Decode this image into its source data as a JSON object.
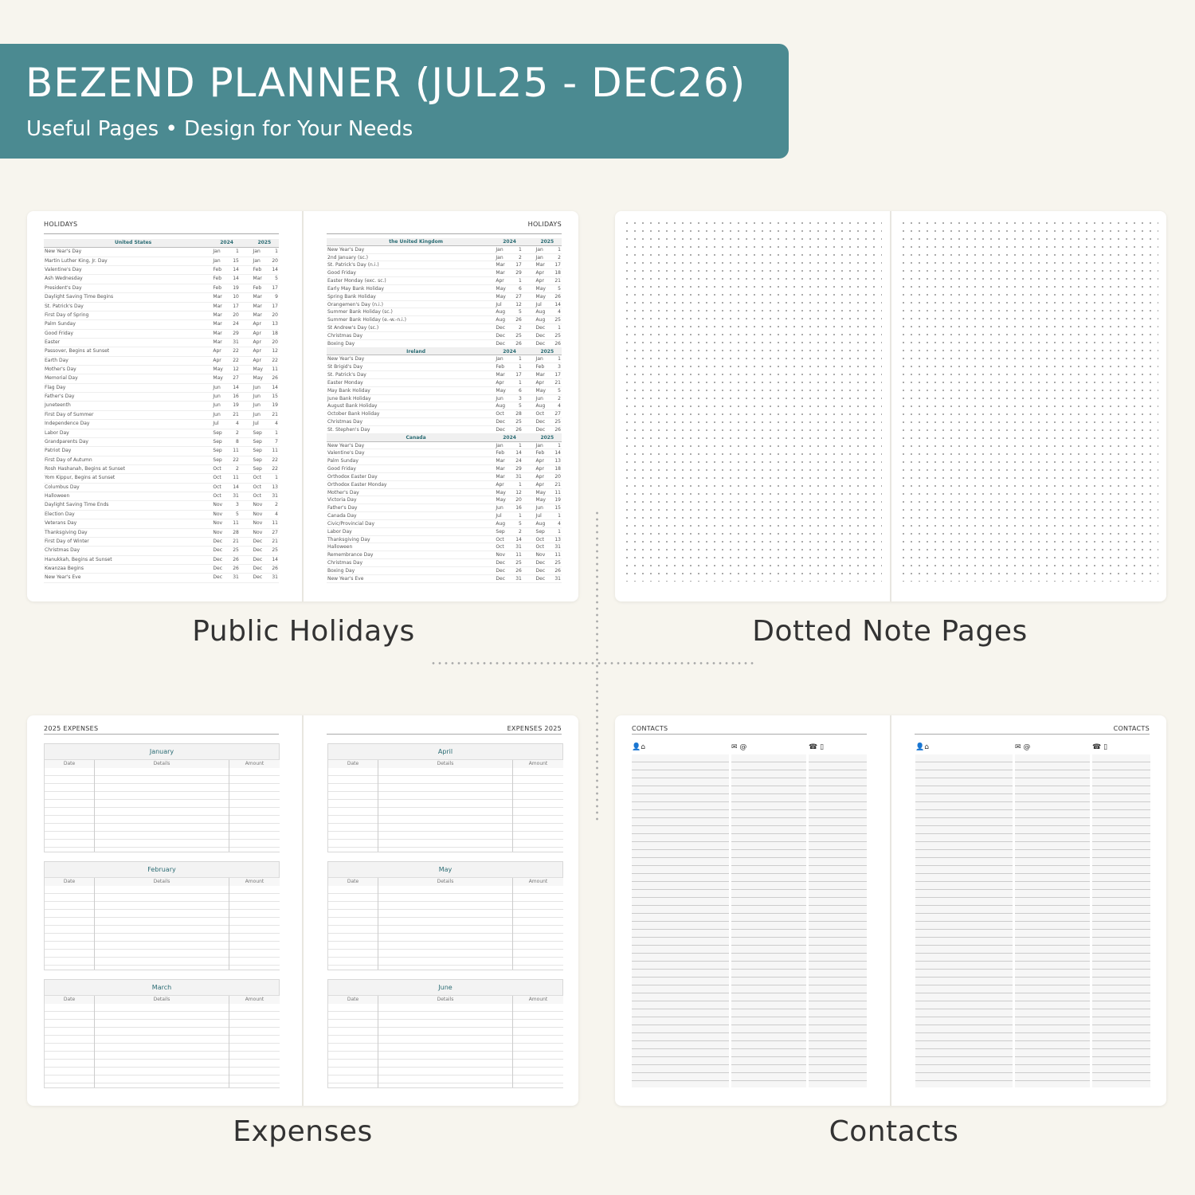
{
  "banner": {
    "title": "BEZEND PLANNER (JUL25 - DEC26)",
    "subtitle": "Useful Pages  •  Design for Your Needs",
    "color": "#4b8a91"
  },
  "sections": {
    "holidays": "Public Holidays",
    "dotted": "Dotted Note Pages",
    "expenses": "Expenses",
    "contacts": "Contacts"
  },
  "holidays": {
    "title": "HOLIDAYS",
    "years": [
      "2024",
      "2025"
    ],
    "left": [
      {
        "country": "United States",
        "rows": [
          [
            "New Year's Day",
            "Jan",
            "1",
            "Jan",
            "1"
          ],
          [
            "Martin Luther King, Jr. Day",
            "Jan",
            "15",
            "Jan",
            "20"
          ],
          [
            "Valentine's Day",
            "Feb",
            "14",
            "Feb",
            "14"
          ],
          [
            "Ash Wednesday",
            "Feb",
            "14",
            "Mar",
            "5"
          ],
          [
            "President's Day",
            "Feb",
            "19",
            "Feb",
            "17"
          ],
          [
            "Daylight Saving Time Begins",
            "Mar",
            "10",
            "Mar",
            "9"
          ],
          [
            "St. Patrick's Day",
            "Mar",
            "17",
            "Mar",
            "17"
          ],
          [
            "First Day of Spring",
            "Mar",
            "20",
            "Mar",
            "20"
          ],
          [
            "Palm Sunday",
            "Mar",
            "24",
            "Apr",
            "13"
          ],
          [
            "Good Friday",
            "Mar",
            "29",
            "Apr",
            "18"
          ],
          [
            "Easter",
            "Mar",
            "31",
            "Apr",
            "20"
          ],
          [
            "Passover, Begins at Sunset",
            "Apr",
            "22",
            "Apr",
            "12"
          ],
          [
            "Earth Day",
            "Apr",
            "22",
            "Apr",
            "22"
          ],
          [
            "Mother's Day",
            "May",
            "12",
            "May",
            "11"
          ],
          [
            "Memorial Day",
            "May",
            "27",
            "May",
            "26"
          ],
          [
            "Flag Day",
            "Jun",
            "14",
            "Jun",
            "14"
          ],
          [
            "Father's Day",
            "Jun",
            "16",
            "Jun",
            "15"
          ],
          [
            "Juneteenth",
            "Jun",
            "19",
            "Jun",
            "19"
          ],
          [
            "First Day of Summer",
            "Jun",
            "21",
            "Jun",
            "21"
          ],
          [
            "Independence Day",
            "Jul",
            "4",
            "Jul",
            "4"
          ],
          [
            "Labor Day",
            "Sep",
            "2",
            "Sep",
            "1"
          ],
          [
            "Grandparents Day",
            "Sep",
            "8",
            "Sep",
            "7"
          ],
          [
            "Patriot Day",
            "Sep",
            "11",
            "Sep",
            "11"
          ],
          [
            "First Day of Autumn",
            "Sep",
            "22",
            "Sep",
            "22"
          ],
          [
            "Rosh Hashanah, Begins at Sunset",
            "Oct",
            "2",
            "Sep",
            "22"
          ],
          [
            "Yom Kippur, Begins at Sunset",
            "Oct",
            "11",
            "Oct",
            "1"
          ],
          [
            "Columbus Day",
            "Oct",
            "14",
            "Oct",
            "13"
          ],
          [
            "Halloween",
            "Oct",
            "31",
            "Oct",
            "31"
          ],
          [
            "Daylight Saving Time Ends",
            "Nov",
            "3",
            "Nov",
            "2"
          ],
          [
            "Election Day",
            "Nov",
            "5",
            "Nov",
            "4"
          ],
          [
            "Veterans Day",
            "Nov",
            "11",
            "Nov",
            "11"
          ],
          [
            "Thanksgiving Day",
            "Nov",
            "28",
            "Nov",
            "27"
          ],
          [
            "First Day of Winter",
            "Dec",
            "21",
            "Dec",
            "21"
          ],
          [
            "Christmas Day",
            "Dec",
            "25",
            "Dec",
            "25"
          ],
          [
            "Hanukkah, Begins at Sunset",
            "Dec",
            "26",
            "Dec",
            "14"
          ],
          [
            "Kwanzaa Begins",
            "Dec",
            "26",
            "Dec",
            "26"
          ],
          [
            "New Year's Eve",
            "Dec",
            "31",
            "Dec",
            "31"
          ]
        ]
      }
    ],
    "right": [
      {
        "country": "the United Kingdom",
        "rows": [
          [
            "New Year's Day",
            "Jan",
            "1",
            "Jan",
            "1"
          ],
          [
            "2nd January (sc.)",
            "Jan",
            "2",
            "Jan",
            "2"
          ],
          [
            "St. Patrick's Day (n.i.)",
            "Mar",
            "17",
            "Mar",
            "17"
          ],
          [
            "Good Friday",
            "Mar",
            "29",
            "Apr",
            "18"
          ],
          [
            "Easter Monday (exc. sc.)",
            "Apr",
            "1",
            "Apr",
            "21"
          ],
          [
            "Early May Bank Holiday",
            "May",
            "6",
            "May",
            "5"
          ],
          [
            "Spring Bank Holiday",
            "May",
            "27",
            "May",
            "26"
          ],
          [
            "Orangemen's Day (n.i.)",
            "Jul",
            "12",
            "Jul",
            "14"
          ],
          [
            "Summer Bank Holiday (sc.)",
            "Aug",
            "5",
            "Aug",
            "4"
          ],
          [
            "Summer Bank Holiday (e.-w.-n.i.)",
            "Aug",
            "26",
            "Aug",
            "25"
          ],
          [
            "St Andrew's Day (sc.)",
            "Dec",
            "2",
            "Dec",
            "1"
          ],
          [
            "Christmas Day",
            "Dec",
            "25",
            "Dec",
            "25"
          ],
          [
            "Boxing Day",
            "Dec",
            "26",
            "Dec",
            "26"
          ]
        ]
      },
      {
        "country": "Ireland",
        "rows": [
          [
            "New Year's Day",
            "Jan",
            "1",
            "Jan",
            "1"
          ],
          [
            "St Brigid's Day",
            "Feb",
            "1",
            "Feb",
            "3"
          ],
          [
            "St. Patrick's Day",
            "Mar",
            "17",
            "Mar",
            "17"
          ],
          [
            "Easter Monday",
            "Apr",
            "1",
            "Apr",
            "21"
          ],
          [
            "May Bank Holiday",
            "May",
            "6",
            "May",
            "5"
          ],
          [
            "June Bank Holiday",
            "Jun",
            "3",
            "Jun",
            "2"
          ],
          [
            "August Bank Holiday",
            "Aug",
            "5",
            "Aug",
            "4"
          ],
          [
            "October Bank Holiday",
            "Oct",
            "28",
            "Oct",
            "27"
          ],
          [
            "Christmas Day",
            "Dec",
            "25",
            "Dec",
            "25"
          ],
          [
            "St. Stephen's Day",
            "Dec",
            "26",
            "Dec",
            "26"
          ]
        ]
      },
      {
        "country": "Canada",
        "rows": [
          [
            "New Year's Day",
            "Jan",
            "1",
            "Jan",
            "1"
          ],
          [
            "Valentine's Day",
            "Feb",
            "14",
            "Feb",
            "14"
          ],
          [
            "Palm Sunday",
            "Mar",
            "24",
            "Apr",
            "13"
          ],
          [
            "Good Friday",
            "Mar",
            "29",
            "Apr",
            "18"
          ],
          [
            "Orthodox Easter Day",
            "Mar",
            "31",
            "Apr",
            "20"
          ],
          [
            "Orthodox Easter Monday",
            "Apr",
            "1",
            "Apr",
            "21"
          ],
          [
            "Mother's Day",
            "May",
            "12",
            "May",
            "11"
          ],
          [
            "Victoria Day",
            "May",
            "20",
            "May",
            "19"
          ],
          [
            "Father's Day",
            "Jun",
            "16",
            "Jun",
            "15"
          ],
          [
            "Canada Day",
            "Jul",
            "1",
            "Jul",
            "1"
          ],
          [
            "Civic/Provincial Day",
            "Aug",
            "5",
            "Aug",
            "4"
          ],
          [
            "Labor Day",
            "Sep",
            "2",
            "Sep",
            "1"
          ],
          [
            "Thanksgiving Day",
            "Oct",
            "14",
            "Oct",
            "13"
          ],
          [
            "Halloween",
            "Oct",
            "31",
            "Oct",
            "31"
          ],
          [
            "Remembrance Day",
            "Nov",
            "11",
            "Nov",
            "11"
          ],
          [
            "Christmas Day",
            "Dec",
            "25",
            "Dec",
            "25"
          ],
          [
            "Boxing Day",
            "Dec",
            "26",
            "Dec",
            "26"
          ],
          [
            "New Year's Eve",
            "Dec",
            "31",
            "Dec",
            "31"
          ]
        ]
      }
    ]
  },
  "expenses": {
    "left_title": "2025 EXPENSES",
    "right_title": "EXPENSES 2025",
    "columns": [
      "Date",
      "Details",
      "Amount"
    ],
    "left_months": [
      "January",
      "February",
      "March"
    ],
    "right_months": [
      "April",
      "May",
      "June"
    ]
  },
  "contacts": {
    "title": "CONTACTS",
    "icons": [
      "person-home-icon",
      "mail-at-icon",
      "phone-mobile-icon"
    ],
    "glyphs": [
      "👤⌂",
      "✉ @",
      "☎ ▯"
    ]
  }
}
